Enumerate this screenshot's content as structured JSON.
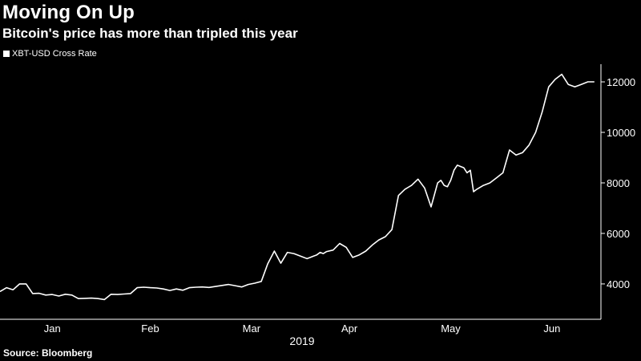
{
  "header": {
    "title": "Moving On Up",
    "subtitle": "Bitcoin's price has more than tripled this year"
  },
  "legend": {
    "label": "XBT-USD Cross Rate"
  },
  "footer": {
    "source": "Source: Bloomberg"
  },
  "colors": {
    "background": "#000000",
    "line": "#ffffff",
    "axis": "#ffffff"
  },
  "chart_data": {
    "type": "line",
    "title": "Moving On Up",
    "subtitle": "Bitcoin's price has more than tripled this year",
    "xlabel": "2019",
    "ylabel": "",
    "ylim": [
      2600,
      12700
    ],
    "xlim": [
      0,
      184
    ],
    "x_ticks": [
      {
        "label": "Jan",
        "x": 16
      },
      {
        "label": "Feb",
        "x": 46
      },
      {
        "label": "Mar",
        "x": 77
      },
      {
        "label": "Apr",
        "x": 107
      },
      {
        "label": "May",
        "x": 138
      },
      {
        "label": "Jun",
        "x": 169
      }
    ],
    "y_ticks": [
      4000,
      6000,
      8000,
      10000,
      12000
    ],
    "legend": [
      "XBT-USD Cross Rate"
    ],
    "legend_position": "top-left",
    "grid": false,
    "series": [
      {
        "name": "XBT-USD Cross Rate",
        "x": [
          0,
          2,
          4,
          6,
          8,
          10,
          12,
          14,
          16,
          18,
          20,
          22,
          24,
          26,
          28,
          30,
          32,
          34,
          36,
          38,
          40,
          42,
          44,
          46,
          48,
          50,
          52,
          54,
          56,
          58,
          60,
          62,
          64,
          66,
          68,
          70,
          72,
          74,
          76,
          78,
          80,
          82,
          84,
          86,
          88,
          90,
          92,
          94,
          95,
          96,
          97,
          98,
          99,
          100,
          102,
          104,
          106,
          108,
          110,
          112,
          114,
          116,
          118,
          120,
          122,
          124,
          126,
          128,
          130,
          132,
          134,
          135,
          136,
          137,
          138,
          139,
          140,
          141,
          142,
          143,
          144,
          145,
          146,
          148,
          150,
          152,
          154,
          156,
          158,
          160,
          162,
          164,
          166,
          168,
          170,
          172,
          174,
          176,
          178,
          180,
          182
        ],
        "values": [
          3700,
          3850,
          3770,
          4000,
          4000,
          3620,
          3630,
          3560,
          3580,
          3520,
          3590,
          3560,
          3420,
          3430,
          3440,
          3420,
          3380,
          3590,
          3580,
          3600,
          3620,
          3850,
          3870,
          3850,
          3840,
          3800,
          3740,
          3800,
          3750,
          3850,
          3870,
          3880,
          3860,
          3900,
          3940,
          3980,
          3930,
          3880,
          3980,
          4030,
          4100,
          4800,
          5300,
          4820,
          5250,
          5200,
          5100,
          5000,
          5050,
          5100,
          5150,
          5250,
          5200,
          5280,
          5340,
          5600,
          5450,
          5050,
          5150,
          5300,
          5540,
          5740,
          5870,
          6150,
          7500,
          7750,
          7900,
          8150,
          7800,
          7050,
          8000,
          8100,
          7900,
          7850,
          8100,
          8500,
          8700,
          8650,
          8600,
          8400,
          8500,
          7650,
          7750,
          7900,
          8000,
          8200,
          8400,
          9300,
          9100,
          9200,
          9500,
          10000,
          10800,
          11800,
          12100,
          12300,
          11900,
          11800,
          11900,
          12000,
          12000
        ]
      }
    ]
  }
}
